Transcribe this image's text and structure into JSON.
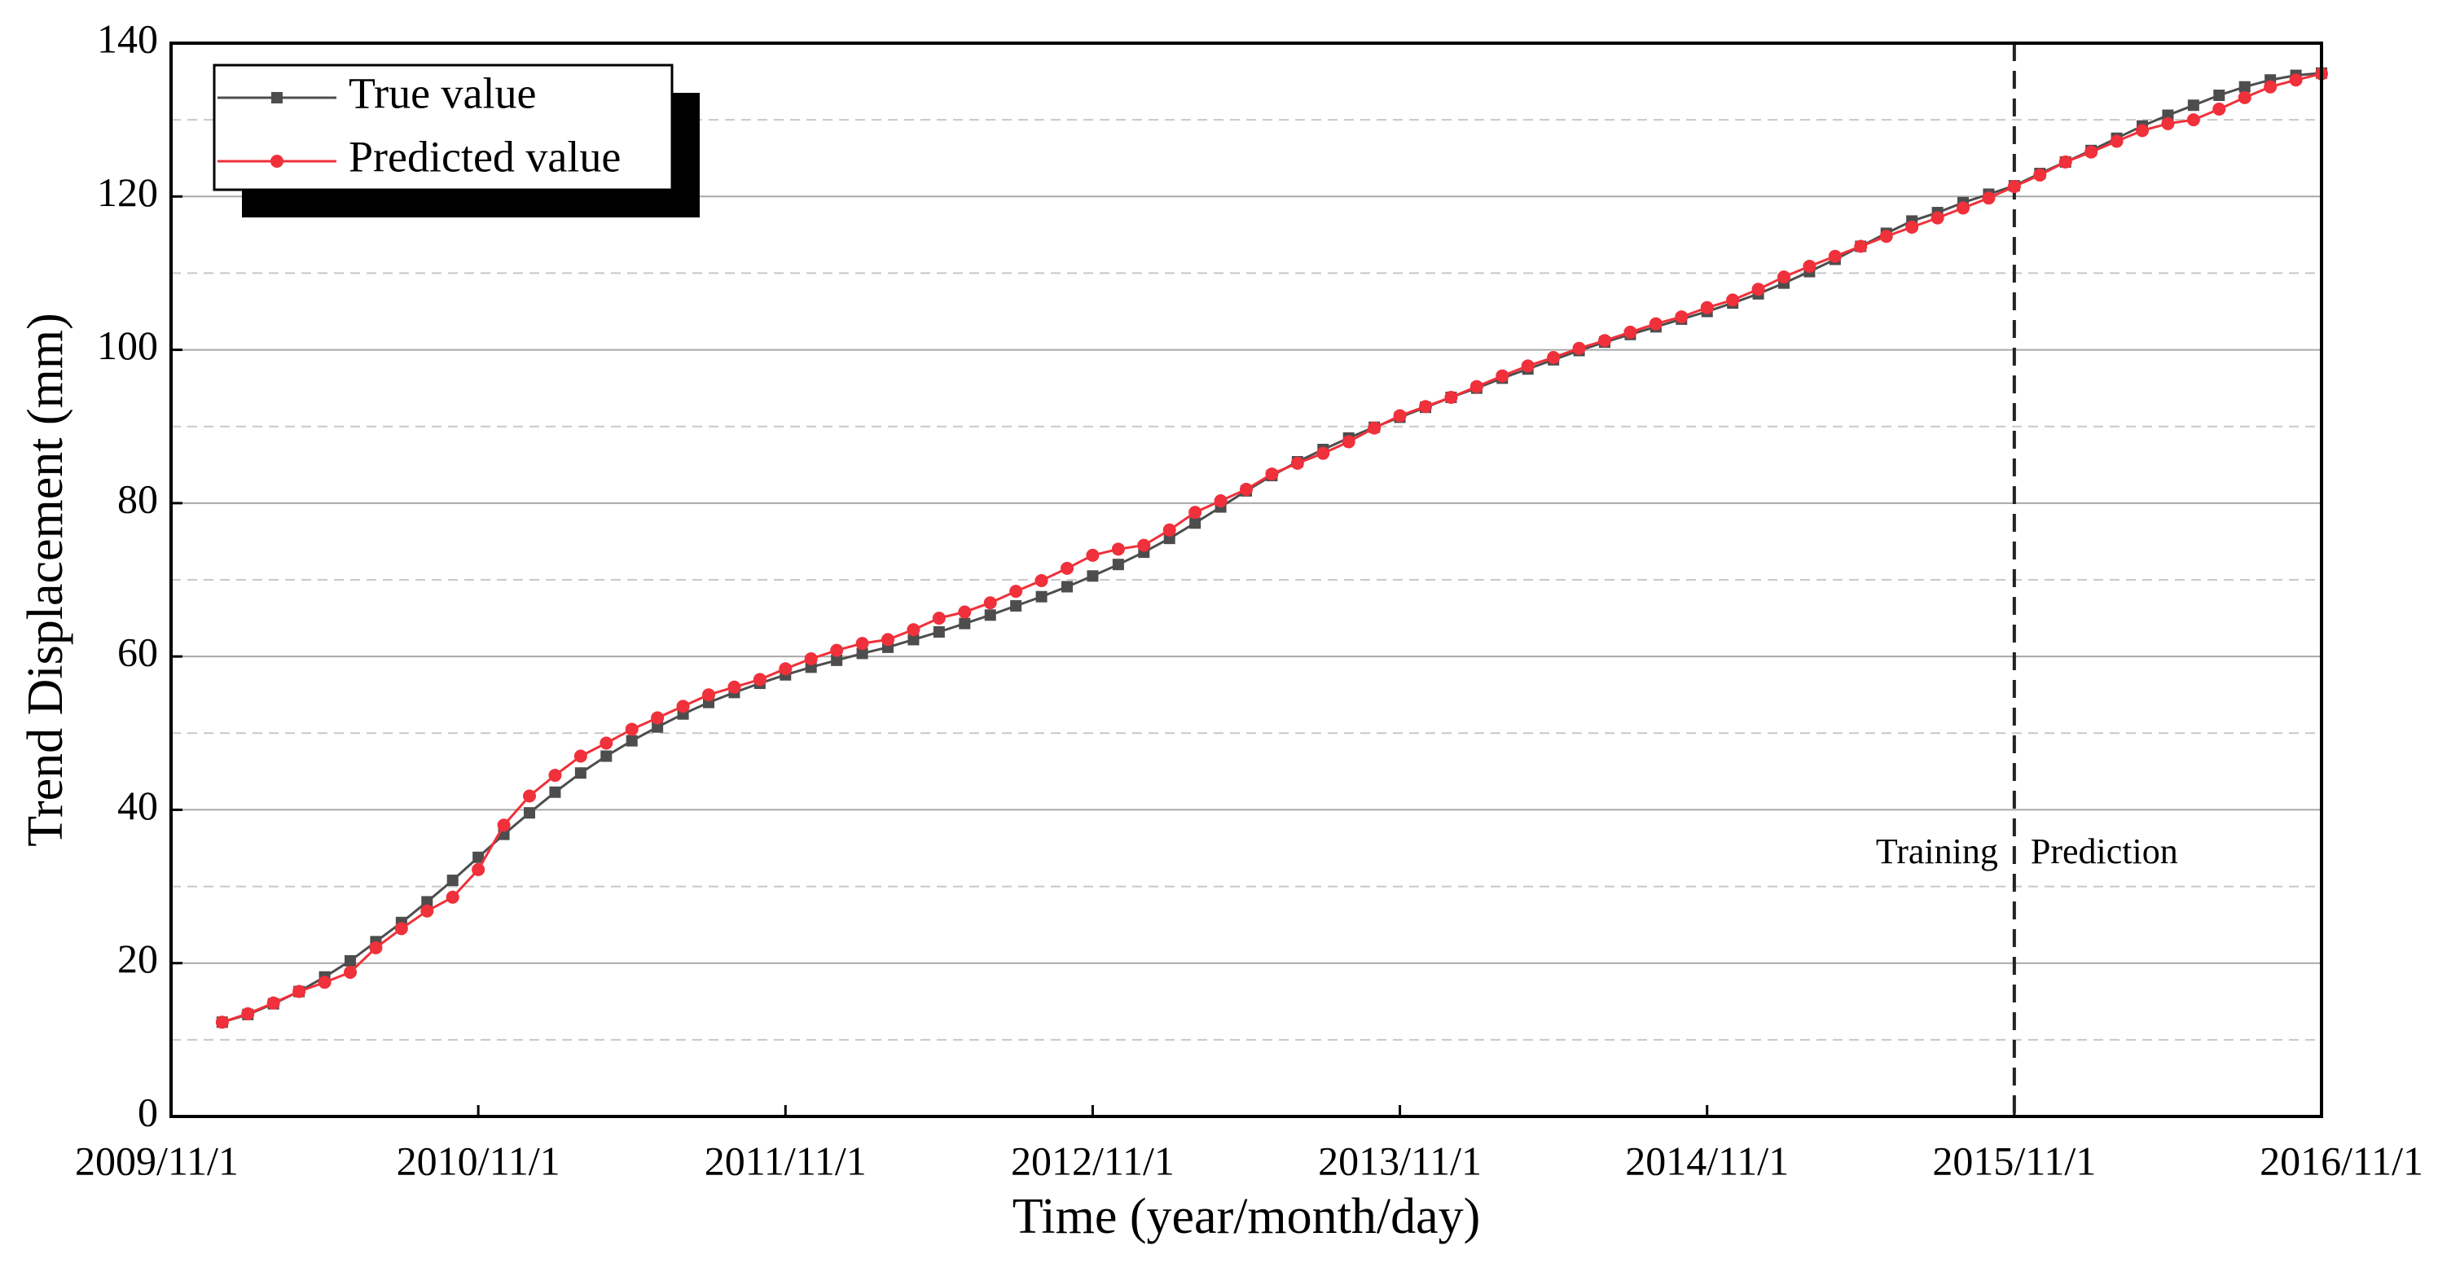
{
  "chart_data": {
    "type": "line",
    "xlabel": "Time (year/month/day)",
    "ylabel": "Trend Displacement (mm)",
    "x": [
      "2010/1/1",
      "2010/2/1",
      "2010/3/1",
      "2010/4/1",
      "2010/5/1",
      "2010/6/1",
      "2010/7/1",
      "2010/8/1",
      "2010/9/1",
      "2010/10/1",
      "2010/11/1",
      "2010/12/1",
      "2011/1/1",
      "2011/2/1",
      "2011/3/1",
      "2011/4/1",
      "2011/5/1",
      "2011/6/1",
      "2011/7/1",
      "2011/8/1",
      "2011/9/1",
      "2011/10/1",
      "2011/11/1",
      "2011/12/1",
      "2012/1/1",
      "2012/2/1",
      "2012/3/1",
      "2012/4/1",
      "2012/5/1",
      "2012/6/1",
      "2012/7/1",
      "2012/8/1",
      "2012/9/1",
      "2012/10/1",
      "2012/11/1",
      "2012/12/1",
      "2013/1/1",
      "2013/2/1",
      "2013/3/1",
      "2013/4/1",
      "2013/5/1",
      "2013/6/1",
      "2013/7/1",
      "2013/8/1",
      "2013/9/1",
      "2013/10/1",
      "2013/11/1",
      "2013/12/1",
      "2014/1/1",
      "2014/2/1",
      "2014/3/1",
      "2014/4/1",
      "2014/5/1",
      "2014/6/1",
      "2014/7/1",
      "2014/8/1",
      "2014/9/1",
      "2014/10/1",
      "2014/11/1",
      "2014/12/1",
      "2015/1/1",
      "2015/2/1",
      "2015/3/1",
      "2015/4/1",
      "2015/5/1",
      "2015/6/1",
      "2015/7/1",
      "2015/8/1",
      "2015/9/1",
      "2015/10/1",
      "2015/11/1",
      "2015/12/1",
      "2016/1/1",
      "2016/2/1",
      "2016/3/1",
      "2016/4/1",
      "2016/5/1",
      "2016/6/1",
      "2016/7/1",
      "2016/8/1",
      "2016/9/1",
      "2016/10/1",
      "2016/11/1"
    ],
    "series": [
      {
        "name": "True value",
        "color": "#4d4d4d",
        "marker": "square",
        "values": [
          12.3,
          13.3,
          14.7,
          16.3,
          18.2,
          20.3,
          22.8,
          25.3,
          28.0,
          30.8,
          33.8,
          36.8,
          39.6,
          42.3,
          44.8,
          47.0,
          49.0,
          50.8,
          52.5,
          54.0,
          55.3,
          56.5,
          57.6,
          58.6,
          59.5,
          60.4,
          61.2,
          62.2,
          63.2,
          64.3,
          65.4,
          66.6,
          67.8,
          69.1,
          70.5,
          72.0,
          73.6,
          75.4,
          77.4,
          79.5,
          81.6,
          83.6,
          85.4,
          87.0,
          88.5,
          89.9,
          91.2,
          92.5,
          93.8,
          95.0,
          96.3,
          97.5,
          98.7,
          99.9,
          101.0,
          102.0,
          103.0,
          104.0,
          105.0,
          106.1,
          107.3,
          108.7,
          110.2,
          111.8,
          113.5,
          115.2,
          116.8,
          117.9,
          119.2,
          120.3,
          121.4,
          123.0,
          124.5,
          126.0,
          127.6,
          129.2,
          130.6,
          131.9,
          133.2,
          134.3,
          135.2,
          135.8,
          136.1
        ]
      },
      {
        "name": "Predicted value",
        "color": "#f0303a",
        "marker": "circle",
        "values": [
          12.3,
          13.4,
          14.8,
          16.3,
          17.5,
          18.8,
          22.0,
          24.5,
          26.8,
          28.6,
          32.2,
          38.0,
          41.8,
          44.5,
          47.0,
          48.7,
          50.5,
          52.0,
          53.5,
          55.0,
          56.0,
          57.0,
          58.4,
          59.7,
          60.8,
          61.7,
          62.2,
          63.5,
          65.0,
          65.8,
          67.0,
          68.5,
          69.9,
          71.5,
          73.2,
          74.0,
          74.5,
          76.5,
          78.8,
          80.3,
          81.8,
          83.8,
          85.2,
          86.5,
          88.0,
          89.8,
          91.4,
          92.6,
          93.8,
          95.2,
          96.6,
          97.9,
          99.0,
          100.2,
          101.2,
          102.3,
          103.4,
          104.3,
          105.5,
          106.5,
          107.9,
          109.5,
          110.9,
          112.2,
          113.5,
          114.8,
          116.0,
          117.2,
          118.5,
          119.8,
          121.3,
          122.8,
          124.5,
          125.8,
          127.2,
          128.6,
          129.5,
          130.0,
          131.4,
          132.9,
          134.3,
          135.2,
          136.0
        ]
      }
    ],
    "xlim": [
      "2009/11/1",
      "2016/11/1"
    ],
    "xticks": [
      "2009/11/1",
      "2010/11/1",
      "2011/11/1",
      "2012/11/1",
      "2013/11/1",
      "2014/11/1",
      "2015/11/1",
      "2016/11/1"
    ],
    "ylim": [
      0,
      140
    ],
    "yticks": [
      0,
      20,
      40,
      60,
      80,
      100,
      120,
      140
    ],
    "grid": true,
    "minor_grid": true,
    "legend": "upper-left",
    "split_x": "2015/11/1",
    "annotations": [
      {
        "text": "Training"
      },
      {
        "text": "Prediction"
      }
    ]
  }
}
